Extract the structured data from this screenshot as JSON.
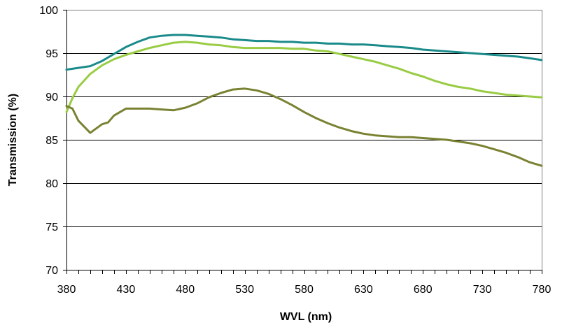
{
  "chart_data": {
    "type": "line",
    "title": "",
    "xlabel": "WVL (nm)",
    "ylabel": "Transmission (%)",
    "xlim": [
      380,
      780
    ],
    "ylim": [
      70,
      100
    ],
    "x_ticks": [
      380,
      430,
      480,
      530,
      580,
      630,
      680,
      730,
      780
    ],
    "y_ticks": [
      70,
      75,
      80,
      85,
      90,
      95,
      100
    ],
    "x_minor_tick_step": 10,
    "grid": "horizontal major",
    "legend": "none",
    "colors": {
      "plot_border": "#808080",
      "grid": "#000000",
      "series_teal": "#1a8a8a",
      "series_light_green": "#99cc44",
      "series_olive": "#7a8232"
    },
    "series": [
      {
        "color": "#1a8a8a",
        "points": [
          [
            380,
            93.1
          ],
          [
            390,
            93.3
          ],
          [
            400,
            93.5
          ],
          [
            410,
            94.1
          ],
          [
            420,
            94.9
          ],
          [
            430,
            95.7
          ],
          [
            440,
            96.3
          ],
          [
            450,
            96.8
          ],
          [
            460,
            97.0
          ],
          [
            470,
            97.1
          ],
          [
            480,
            97.1
          ],
          [
            490,
            97.0
          ],
          [
            500,
            96.9
          ],
          [
            510,
            96.8
          ],
          [
            520,
            96.6
          ],
          [
            530,
            96.5
          ],
          [
            540,
            96.4
          ],
          [
            550,
            96.4
          ],
          [
            560,
            96.3
          ],
          [
            570,
            96.3
          ],
          [
            580,
            96.2
          ],
          [
            590,
            96.2
          ],
          [
            600,
            96.1
          ],
          [
            610,
            96.1
          ],
          [
            620,
            96.0
          ],
          [
            630,
            96.0
          ],
          [
            640,
            95.9
          ],
          [
            650,
            95.8
          ],
          [
            660,
            95.7
          ],
          [
            670,
            95.6
          ],
          [
            680,
            95.4
          ],
          [
            690,
            95.3
          ],
          [
            700,
            95.2
          ],
          [
            710,
            95.1
          ],
          [
            720,
            95.0
          ],
          [
            730,
            94.9
          ],
          [
            740,
            94.8
          ],
          [
            750,
            94.7
          ],
          [
            760,
            94.6
          ],
          [
            770,
            94.4
          ],
          [
            780,
            94.2
          ]
        ]
      },
      {
        "color": "#99cc44",
        "points": [
          [
            380,
            88.2
          ],
          [
            385,
            89.8
          ],
          [
            390,
            91.1
          ],
          [
            400,
            92.6
          ],
          [
            410,
            93.6
          ],
          [
            420,
            94.3
          ],
          [
            430,
            94.8
          ],
          [
            440,
            95.2
          ],
          [
            450,
            95.6
          ],
          [
            460,
            95.9
          ],
          [
            470,
            96.2
          ],
          [
            480,
            96.3
          ],
          [
            490,
            96.2
          ],
          [
            500,
            96.0
          ],
          [
            510,
            95.9
          ],
          [
            520,
            95.7
          ],
          [
            530,
            95.6
          ],
          [
            540,
            95.6
          ],
          [
            550,
            95.6
          ],
          [
            560,
            95.6
          ],
          [
            570,
            95.5
          ],
          [
            580,
            95.5
          ],
          [
            590,
            95.3
          ],
          [
            600,
            95.2
          ],
          [
            610,
            94.9
          ],
          [
            620,
            94.6
          ],
          [
            630,
            94.3
          ],
          [
            640,
            94.0
          ],
          [
            650,
            93.6
          ],
          [
            660,
            93.2
          ],
          [
            670,
            92.7
          ],
          [
            680,
            92.3
          ],
          [
            690,
            91.8
          ],
          [
            700,
            91.4
          ],
          [
            710,
            91.1
          ],
          [
            720,
            90.9
          ],
          [
            730,
            90.6
          ],
          [
            740,
            90.4
          ],
          [
            750,
            90.2
          ],
          [
            760,
            90.1
          ],
          [
            770,
            90.0
          ],
          [
            780,
            89.9
          ]
        ]
      },
      {
        "color": "#7a8232",
        "points": [
          [
            380,
            88.9
          ],
          [
            385,
            88.6
          ],
          [
            390,
            87.2
          ],
          [
            400,
            85.8
          ],
          [
            410,
            86.8
          ],
          [
            415,
            87.0
          ],
          [
            420,
            87.8
          ],
          [
            430,
            88.6
          ],
          [
            440,
            88.6
          ],
          [
            450,
            88.6
          ],
          [
            460,
            88.5
          ],
          [
            470,
            88.4
          ],
          [
            480,
            88.7
          ],
          [
            490,
            89.2
          ],
          [
            500,
            89.9
          ],
          [
            510,
            90.4
          ],
          [
            520,
            90.8
          ],
          [
            530,
            90.9
          ],
          [
            540,
            90.7
          ],
          [
            550,
            90.3
          ],
          [
            560,
            89.7
          ],
          [
            570,
            89.0
          ],
          [
            580,
            88.2
          ],
          [
            590,
            87.5
          ],
          [
            600,
            86.9
          ],
          [
            610,
            86.4
          ],
          [
            620,
            86.0
          ],
          [
            630,
            85.7
          ],
          [
            640,
            85.5
          ],
          [
            650,
            85.4
          ],
          [
            660,
            85.3
          ],
          [
            670,
            85.3
          ],
          [
            680,
            85.2
          ],
          [
            690,
            85.1
          ],
          [
            700,
            85.0
          ],
          [
            710,
            84.8
          ],
          [
            720,
            84.6
          ],
          [
            730,
            84.3
          ],
          [
            740,
            83.9
          ],
          [
            750,
            83.5
          ],
          [
            760,
            83.0
          ],
          [
            770,
            82.4
          ],
          [
            780,
            82.0
          ]
        ]
      }
    ]
  }
}
